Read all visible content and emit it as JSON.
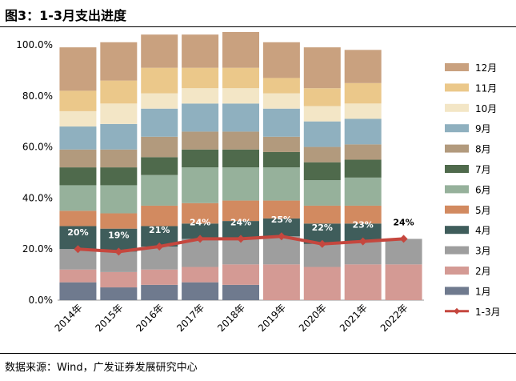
{
  "figure": {
    "title": "图3：1-3月支出进度",
    "source": "数据来源：Wind，广发证券发展研究中心"
  },
  "chart_data": {
    "type": "bar",
    "stacked": true,
    "title": "图3：1-3月支出进度",
    "categories": [
      "2014年",
      "2015年",
      "2016年",
      "2017年",
      "2018年",
      "2019年",
      "2020年",
      "2021年",
      "2022年"
    ],
    "ylim": [
      0,
      100
    ],
    "yticks": [
      "0.0%",
      "20.0%",
      "40.0%",
      "60.0%",
      "80.0%",
      "100.0%"
    ],
    "series": [
      {
        "name": "1月",
        "color": "#6f7a8e",
        "values": [
          7,
          5,
          6,
          7,
          6,
          0,
          0,
          0,
          0
        ]
      },
      {
        "name": "2月",
        "color": "#d49a94",
        "values": [
          5,
          6,
          6,
          6,
          8,
          14,
          13,
          14,
          14
        ]
      },
      {
        "name": "3月",
        "color": "#9e9e9e",
        "values": [
          8,
          8,
          9,
          11,
          10,
          11,
          9,
          9,
          10
        ]
      },
      {
        "name": "4月",
        "color": "#3f5d5b",
        "values": [
          9,
          9,
          8,
          6,
          7,
          7,
          8,
          7,
          0
        ]
      },
      {
        "name": "5月",
        "color": "#d28a60",
        "values": [
          6,
          6,
          8,
          8,
          8,
          7,
          7,
          7,
          0
        ]
      },
      {
        "name": "6月",
        "color": "#96b19b",
        "values": [
          10,
          11,
          12,
          14,
          13,
          13,
          10,
          11,
          0
        ]
      },
      {
        "name": "7月",
        "color": "#4f6a4c",
        "values": [
          7,
          7,
          7,
          7,
          7,
          6,
          7,
          7,
          0
        ]
      },
      {
        "name": "8月",
        "color": "#b29a7d",
        "values": [
          7,
          7,
          8,
          7,
          7,
          6,
          6,
          6,
          0
        ]
      },
      {
        "name": "9月",
        "color": "#8fb0bf",
        "values": [
          9,
          10,
          11,
          11,
          11,
          11,
          10,
          10,
          0
        ]
      },
      {
        "name": "10月",
        "color": "#f3e6c6",
        "values": [
          6,
          8,
          6,
          6,
          6,
          6,
          6,
          6,
          0
        ]
      },
      {
        "name": "11月",
        "color": "#ebc88a",
        "values": [
          8,
          9,
          10,
          8,
          8,
          6,
          7,
          8,
          0
        ]
      },
      {
        "name": "12月",
        "color": "#c9a17f",
        "values": [
          17,
          15,
          13,
          13,
          14,
          14,
          16,
          13,
          0
        ]
      }
    ],
    "line": {
      "name": "1-3月",
      "color": "#c5473e",
      "values": [
        20,
        19,
        21,
        24,
        24,
        25,
        22,
        23,
        24
      ],
      "labels": [
        "20%",
        "19%",
        "21%",
        "24%",
        "24%",
        "25%",
        "22%",
        "23%",
        "24%"
      ]
    },
    "legend_position": "right"
  }
}
